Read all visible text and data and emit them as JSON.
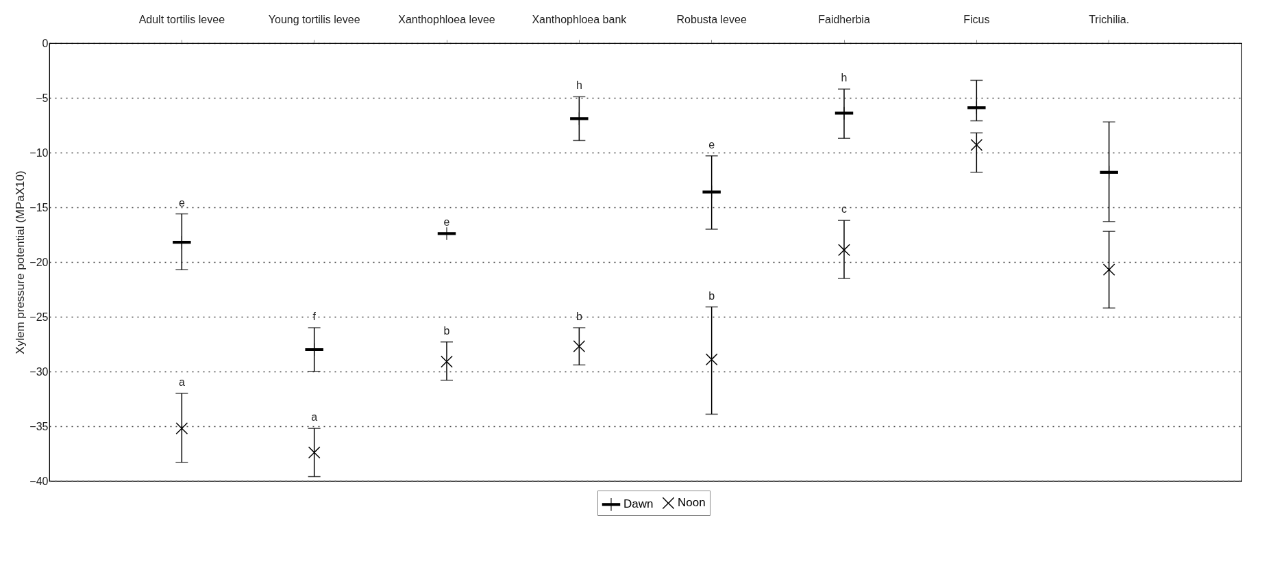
{
  "chart_data": {
    "type": "scatter",
    "ylabel": "Xylem pressure potential (MPaX10)",
    "categories": [
      "Adult tortilis levee",
      "Young tortilis levee",
      "Xanthophloea levee",
      "Xanthophloea bank",
      "Robusta levee",
      "Faidherbia",
      "Ficus",
      "Trichilia."
    ],
    "series": [
      {
        "name": "Dawn",
        "color": "#000000",
        "values": [
          -18.2,
          -28,
          -17.4,
          -6.9,
          -13.6,
          -6.4,
          -5.9,
          -11.8
        ],
        "errors": [
          [
            -20.7,
            -15.6
          ],
          [
            -30,
            -26
          ],
          null,
          [
            -8.9,
            -4.9
          ],
          [
            -17,
            -10.3
          ],
          [
            -8.7,
            -4.2
          ],
          [
            -7.1,
            -3.4
          ],
          [
            -16.3,
            -7.2
          ]
        ]
      },
      {
        "name": "Noon",
        "color": "#000000",
        "marker": "cross",
        "values": [
          -35.2,
          -37.4,
          -29.1,
          -27.7,
          -28.9,
          -18.9,
          -9.3,
          -20.7
        ],
        "errors": [
          [
            -38.3,
            -32
          ],
          [
            -39.6,
            -35.2
          ],
          [
            -30.8,
            -27.3
          ],
          [
            -29.4,
            -26
          ],
          [
            -33.9,
            -24.1
          ],
          [
            -21.5,
            -16.2
          ],
          [
            -11.8,
            -8.2
          ],
          [
            -24.2,
            -17.2
          ]
        ]
      }
    ],
    "ylim": [
      -40,
      0
    ],
    "yticks": [
      -40,
      -35,
      -30,
      -25,
      -20,
      -15,
      -10,
      -5,
      0
    ],
    "grid": "y",
    "legend": "bottom",
    "annotations": [
      {
        "text": "e",
        "x": "Adult tortilis levee",
        "y": -15.6
      },
      {
        "text": "a",
        "x": "Adult tortilis levee",
        "y": -32
      },
      {
        "text": "f",
        "x": "Young tortilis levee",
        "y": -26
      },
      {
        "text": "a",
        "x": "Young tortilis levee",
        "y": -35.2
      },
      {
        "text": "e",
        "x": "Xanthophloea levee",
        "y": -17.4
      },
      {
        "text": "b",
        "x": "Xanthophloea levee",
        "y": -27.3
      },
      {
        "text": "h",
        "x": "Xanthophloea bank",
        "y": -4.9
      },
      {
        "text": "b",
        "x": "Xanthophloea bank",
        "y": -26
      },
      {
        "text": "e",
        "x": "Robusta levee",
        "y": -10.3
      },
      {
        "text": "b",
        "x": "Robusta levee",
        "y": -24.1
      },
      {
        "text": "h",
        "x": "Faidherbia",
        "y": -4.2
      },
      {
        "text": "c",
        "x": "Faidherbia",
        "y": -16.2
      }
    ]
  }
}
